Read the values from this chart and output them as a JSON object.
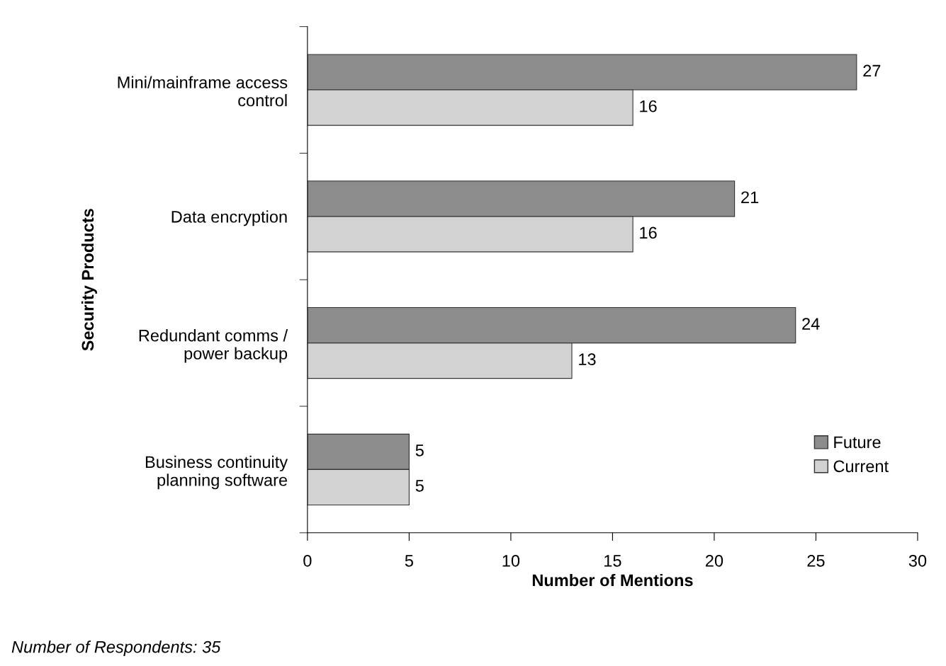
{
  "chart_data": {
    "type": "bar",
    "orientation": "horizontal",
    "xlabel": "Number of Mentions",
    "ylabel": "Security Products",
    "categories": [
      "Mini/mainframe access\ncontrol",
      "Data encryption",
      "Redundant comms /\npower backup",
      "Business continuity\nplanning software"
    ],
    "series": [
      {
        "name": "Future",
        "color": "#8c8c8c",
        "values": [
          27,
          21,
          24,
          5
        ]
      },
      {
        "name": "Current",
        "color": "#d2d2d2",
        "values": [
          16,
          16,
          13,
          5
        ]
      }
    ],
    "xlim": [
      0,
      30
    ],
    "xticks": [
      0,
      5,
      10,
      15,
      20,
      25,
      30
    ],
    "data_labels": true,
    "grid": false,
    "legend": "bottom right",
    "annotations": [
      "Number of Respondents: 35"
    ]
  }
}
